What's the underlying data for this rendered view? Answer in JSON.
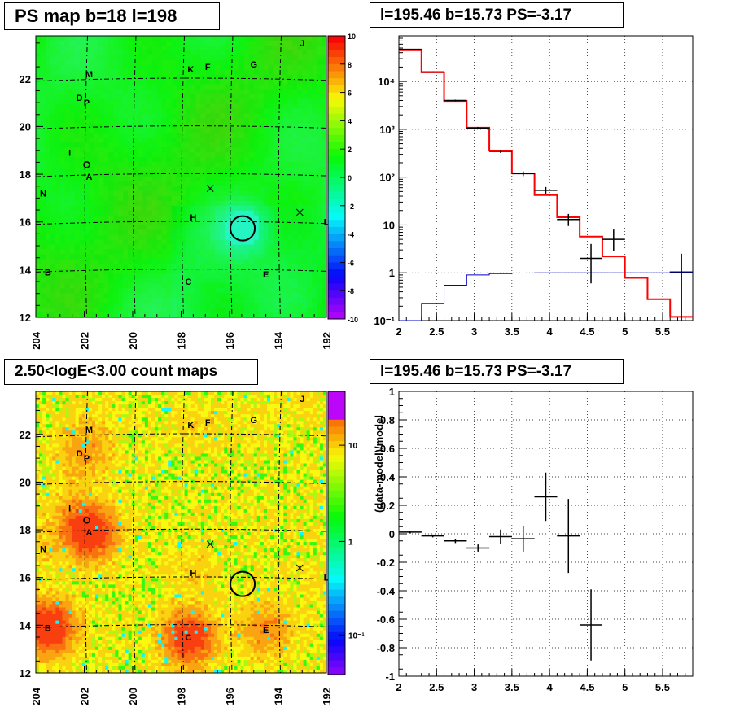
{
  "panels": {
    "ps_map_title": "PS map b=18 l=198",
    "count_map_title": "2.50<logE<3.00 count maps",
    "spectrum_title": "l=195.46 b=15.73 PS=-3.17",
    "residual_title": "l=195.46 b=15.73 PS=-3.17"
  },
  "colors": {
    "data": "#000000",
    "model": "#ff0000",
    "component": "#0000cc"
  },
  "chart_data": [
    {
      "type": "heatmap",
      "name": "ps_map",
      "x_ticks": [
        "204",
        "202",
        "200",
        "198",
        "196",
        "194",
        "192"
      ],
      "y_ticks": [
        "12",
        "14",
        "16",
        "18",
        "20",
        "22"
      ],
      "xlim": [
        204,
        192
      ],
      "ylim": [
        12,
        23.8
      ],
      "colorbar": {
        "min": -10,
        "max": 10,
        "ticks": [
          "10",
          "8",
          "6",
          "4",
          "2",
          "0",
          "-2",
          "-4",
          "-6",
          "-8",
          "-10"
        ]
      },
      "sources": [
        {
          "label": "A",
          "l": 201.8,
          "b": 17.9
        },
        {
          "label": "B",
          "l": 203.5,
          "b": 13.9
        },
        {
          "label": "C",
          "l": 197.7,
          "b": 13.5
        },
        {
          "label": "D",
          "l": 202.2,
          "b": 21.2
        },
        {
          "label": "P",
          "l": 201.9,
          "b": 21.0
        },
        {
          "label": "E",
          "l": 194.5,
          "b": 13.8
        },
        {
          "label": "F",
          "l": 196.9,
          "b": 22.5
        },
        {
          "label": "G",
          "l": 195.0,
          "b": 22.6
        },
        {
          "label": "H",
          "l": 197.5,
          "b": 16.2
        },
        {
          "label": "I",
          "l": 202.6,
          "b": 18.9
        },
        {
          "label": "J",
          "l": 193.0,
          "b": 23.5
        },
        {
          "label": "K",
          "l": 197.6,
          "b": 22.4
        },
        {
          "label": "L",
          "l": 192.0,
          "b": 16.0
        },
        {
          "label": "M",
          "l": 201.8,
          "b": 22.2
        },
        {
          "label": "N",
          "l": 203.7,
          "b": 17.2
        },
        {
          "label": "O",
          "l": 201.9,
          "b": 18.4
        }
      ],
      "markers": [
        {
          "type": "x",
          "l": 196.8,
          "b": 17.4
        },
        {
          "type": "x",
          "l": 193.1,
          "b": 16.4
        }
      ],
      "circle": {
        "l": 195.46,
        "b": 15.73
      }
    },
    {
      "type": "heatmap",
      "name": "count_map",
      "x_ticks": [
        "204",
        "202",
        "200",
        "198",
        "196",
        "194",
        "192"
      ],
      "y_ticks": [
        "12",
        "14",
        "16",
        "18",
        "20",
        "22"
      ],
      "xlim": [
        204,
        192
      ],
      "ylim": [
        12,
        23.8
      ],
      "colorbar": {
        "scale": "log",
        "ticks": [
          "10",
          "1",
          "10⁻¹"
        ]
      },
      "sources_same_as_ps_map": true
    },
    {
      "type": "line",
      "name": "spectrum",
      "ylog": true,
      "xlim": [
        2,
        5.9
      ],
      "ylim": [
        0.1,
        90000
      ],
      "x_ticks": [
        "2",
        "2.5",
        "3",
        "3.5",
        "4",
        "4.5",
        "5",
        "5.5"
      ],
      "y_ticks": [
        "10⁻¹",
        "1",
        "10",
        "10²",
        "10³",
        "10⁴"
      ],
      "bin_edges": [
        2.0,
        2.3,
        2.6,
        2.9,
        3.2,
        3.5,
        3.8,
        4.1,
        4.4,
        4.7,
        5.0,
        5.3,
        5.6,
        5.9
      ],
      "series": [
        {
          "name": "",
          "style": "red-step",
          "values": [
            45000,
            15500,
            3900,
            1080,
            360,
            120,
            42,
            14.5,
            5.7,
            2.2,
            0.78,
            0.28,
            0.12
          ]
        },
        {
          "name": "",
          "style": "blue-step",
          "values": [
            0.1,
            0.23,
            0.55,
            0.9,
            0.96,
            0.99,
            1.0,
            1.0,
            1.0,
            1.0,
            1.0,
            1.0,
            1.05
          ]
        },
        {
          "name": "",
          "style": "black-errorbars",
          "points": [
            {
              "x": 2.15,
              "y": 47000,
              "lo": 46000,
              "hi": 48000
            },
            {
              "x": 2.45,
              "y": 15800,
              "lo": 15400,
              "hi": 16200
            },
            {
              "x": 2.75,
              "y": 4000,
              "lo": 3850,
              "hi": 4150
            },
            {
              "x": 3.05,
              "y": 1060,
              "lo": 1000,
              "hi": 1120
            },
            {
              "x": 3.35,
              "y": 345,
              "lo": 320,
              "hi": 370
            },
            {
              "x": 3.65,
              "y": 118,
              "lo": 105,
              "hi": 132
            },
            {
              "x": 3.95,
              "y": 53,
              "lo": 45,
              "hi": 62
            },
            {
              "x": 4.25,
              "y": 13,
              "lo": 9.5,
              "hi": 17
            },
            {
              "x": 4.55,
              "y": 2.0,
              "lo": 0.6,
              "hi": 4.0
            },
            {
              "x": 4.85,
              "y": 5.0,
              "lo": 2.8,
              "hi": 8.0
            },
            {
              "x": 5.75,
              "y": 1.0,
              "lo": 0.1,
              "hi": 2.5
            }
          ]
        }
      ]
    },
    {
      "type": "scatter",
      "name": "residual",
      "ylabel": "(data-model)/model",
      "xlim": [
        2,
        5.9
      ],
      "ylim": [
        -1,
        1
      ],
      "x_ticks": [
        "2",
        "2.5",
        "3",
        "3.5",
        "4",
        "4.5",
        "5",
        "5.5"
      ],
      "y_ticks": [
        "1",
        "0.8",
        "0.6",
        "0.4",
        "0.2",
        "0",
        "-0.2",
        "-0.4",
        "-0.6",
        "-0.8",
        "-1"
      ],
      "points": [
        {
          "x": 2.15,
          "y": 0.012,
          "err": 0.01
        },
        {
          "x": 2.45,
          "y": -0.015,
          "err": 0.01
        },
        {
          "x": 2.75,
          "y": -0.05,
          "err": 0.015
        },
        {
          "x": 3.05,
          "y": -0.1,
          "err": 0.025
        },
        {
          "x": 3.35,
          "y": -0.02,
          "err": 0.05
        },
        {
          "x": 3.65,
          "y": -0.035,
          "err": 0.09
        },
        {
          "x": 3.95,
          "y": 0.26,
          "err": 0.17
        },
        {
          "x": 4.25,
          "y": -0.015,
          "err": 0.26
        },
        {
          "x": 4.55,
          "y": -0.64,
          "err": 0.25
        }
      ]
    }
  ]
}
